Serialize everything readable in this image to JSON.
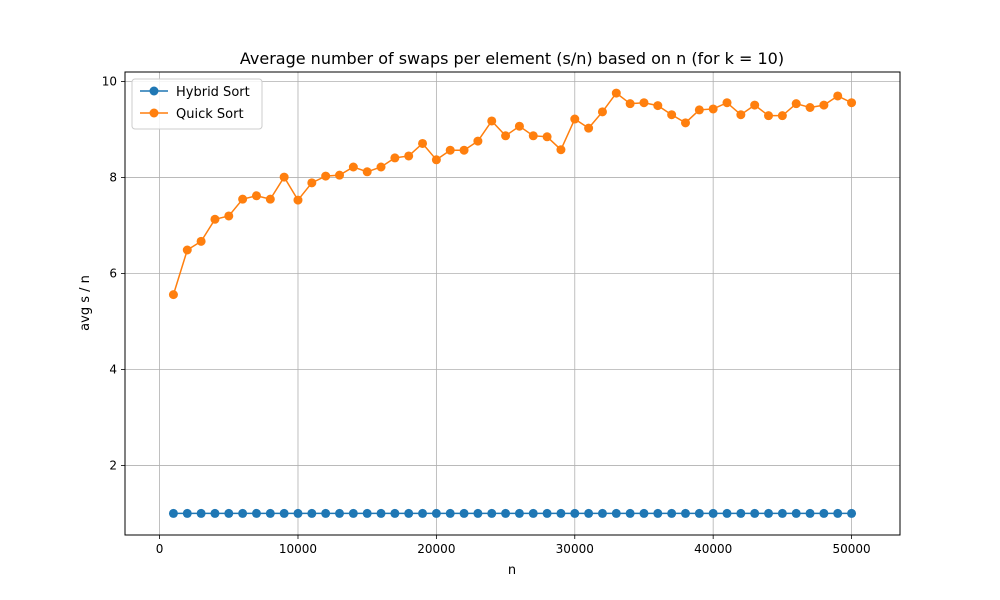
{
  "chart_data": {
    "type": "line",
    "title": "Average number of swaps per element (s/n) based on n (for k = 10)",
    "xlabel": "n",
    "ylabel": "avg s / n",
    "xlim": [
      -2500,
      53500
    ],
    "ylim": [
      0.55,
      10.2
    ],
    "xticks": [
      0,
      10000,
      20000,
      30000,
      40000,
      50000
    ],
    "yticks": [
      2,
      4,
      6,
      8,
      10
    ],
    "grid": true,
    "legend_position": "top-left",
    "x": [
      1000,
      2000,
      3000,
      4000,
      5000,
      6000,
      7000,
      8000,
      9000,
      10000,
      11000,
      12000,
      13000,
      14000,
      15000,
      16000,
      17000,
      18000,
      19000,
      20000,
      21000,
      22000,
      23000,
      24000,
      25000,
      26000,
      27000,
      28000,
      29000,
      30000,
      31000,
      32000,
      33000,
      34000,
      35000,
      36000,
      37000,
      38000,
      39000,
      40000,
      41000,
      42000,
      43000,
      44000,
      45000,
      46000,
      47000,
      48000,
      49000,
      50000
    ],
    "series": [
      {
        "name": "Hybrid Sort",
        "color": "#1f77b4",
        "values": [
          1,
          1,
          1,
          1,
          1,
          1,
          1,
          1,
          1,
          1,
          1,
          1,
          1,
          1,
          1,
          1,
          1,
          1,
          1,
          1,
          1,
          1,
          1,
          1,
          1,
          1,
          1,
          1,
          1,
          1,
          1,
          1,
          1,
          1,
          1,
          1,
          1,
          1,
          1,
          1,
          1,
          1,
          1,
          1,
          1,
          1,
          1,
          1,
          1,
          1
        ]
      },
      {
        "name": "Quick Sort",
        "color": "#ff7f0e",
        "values": [
          5.56,
          6.49,
          6.67,
          7.13,
          7.2,
          7.55,
          7.62,
          7.55,
          8.01,
          7.53,
          7.89,
          8.03,
          8.05,
          8.22,
          8.12,
          8.22,
          8.41,
          8.45,
          8.71,
          8.37,
          8.57,
          8.57,
          8.76,
          9.18,
          8.87,
          9.07,
          8.87,
          8.85,
          8.58,
          9.22,
          9.03,
          9.37,
          9.76,
          9.54,
          9.56,
          9.5,
          9.31,
          9.14,
          9.41,
          9.43,
          9.56,
          9.31,
          9.51,
          9.29,
          9.29,
          9.54,
          9.46,
          9.51,
          9.7,
          9.56
        ]
      }
    ]
  }
}
